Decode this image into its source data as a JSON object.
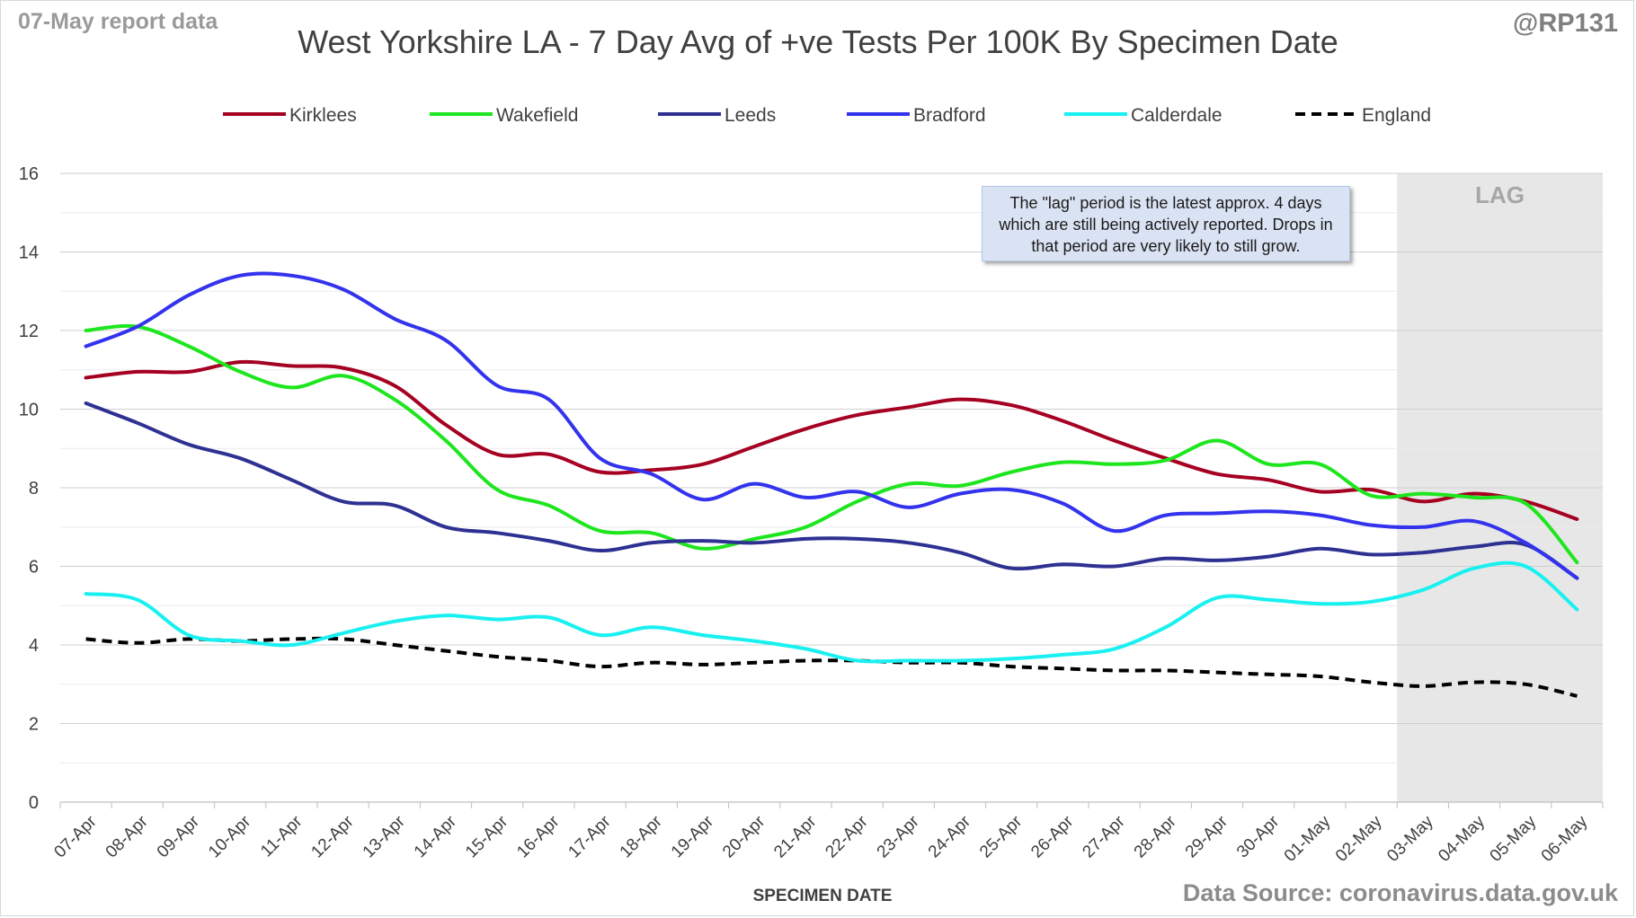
{
  "header": {
    "report_label": "07-May report data",
    "handle": "@RP131",
    "source": "Data Source: coronavirus.data.gov.uk"
  },
  "note": "The \"lag\" period is the latest approx. 4 days which are still being actively reported.  Drops in that period are very likely to still grow.",
  "lag_label": "LAG",
  "chart_data": {
    "type": "line",
    "title": "West Yorkshire LA - 7 Day Avg of +ve Tests Per 100K By Specimen Date",
    "xlabel": "SPECIMEN DATE",
    "ylabel": "",
    "ylim": [
      0,
      16
    ],
    "yticks": [
      0,
      2,
      4,
      6,
      8,
      10,
      12,
      14,
      16
    ],
    "grid": true,
    "legend_position": "top",
    "lag_start": "03-May",
    "lag_end": "06-May",
    "categories": [
      "07-Apr",
      "08-Apr",
      "09-Apr",
      "10-Apr",
      "11-Apr",
      "12-Apr",
      "13-Apr",
      "14-Apr",
      "15-Apr",
      "16-Apr",
      "17-Apr",
      "18-Apr",
      "19-Apr",
      "20-Apr",
      "21-Apr",
      "22-Apr",
      "23-Apr",
      "24-Apr",
      "25-Apr",
      "26-Apr",
      "27-Apr",
      "28-Apr",
      "29-Apr",
      "30-Apr",
      "01-May",
      "02-May",
      "03-May",
      "04-May",
      "05-May",
      "06-May"
    ],
    "series": [
      {
        "name": "Kirklees",
        "color": "#a50021",
        "dashed": false,
        "values": [
          10.8,
          10.95,
          10.95,
          11.2,
          11.1,
          11.05,
          10.6,
          9.6,
          8.85,
          8.85,
          8.4,
          8.45,
          8.6,
          9.05,
          9.5,
          9.85,
          10.05,
          10.25,
          10.1,
          9.7,
          9.2,
          8.75,
          8.35,
          8.2,
          7.9,
          7.95,
          7.65,
          7.85,
          7.65,
          7.2
        ]
      },
      {
        "name": "Wakefield",
        "color": "#1ee61e",
        "dashed": false,
        "values": [
          12.0,
          12.1,
          11.6,
          10.95,
          10.55,
          10.85,
          10.25,
          9.2,
          7.95,
          7.55,
          6.9,
          6.85,
          6.45,
          6.7,
          7.0,
          7.65,
          8.1,
          8.05,
          8.4,
          8.65,
          8.6,
          8.7,
          9.2,
          8.6,
          8.6,
          7.8,
          7.85,
          7.75,
          7.6,
          6.1
        ]
      },
      {
        "name": "Leeds",
        "color": "#2e3192",
        "dashed": false,
        "values": [
          10.15,
          9.65,
          9.1,
          8.75,
          8.2,
          7.65,
          7.55,
          7.0,
          6.85,
          6.65,
          6.4,
          6.6,
          6.65,
          6.6,
          6.7,
          6.7,
          6.6,
          6.35,
          5.95,
          6.05,
          6.0,
          6.2,
          6.15,
          6.25,
          6.45,
          6.3,
          6.35,
          6.5,
          6.55,
          5.7
        ]
      },
      {
        "name": "Bradford",
        "color": "#3333ee",
        "dashed": false,
        "values": [
          11.6,
          12.1,
          12.9,
          13.4,
          13.4,
          13.05,
          12.3,
          11.75,
          10.6,
          10.25,
          8.75,
          8.35,
          7.7,
          8.1,
          7.75,
          7.9,
          7.5,
          7.85,
          7.95,
          7.6,
          6.9,
          7.3,
          7.35,
          7.4,
          7.3,
          7.05,
          7.0,
          7.15,
          6.6,
          5.7
        ]
      },
      {
        "name": "Calderdale",
        "color": "#19f0f0",
        "dashed": false,
        "values": [
          5.3,
          5.15,
          4.25,
          4.1,
          4.0,
          4.3,
          4.6,
          4.75,
          4.65,
          4.7,
          4.25,
          4.45,
          4.25,
          4.1,
          3.9,
          3.6,
          3.6,
          3.6,
          3.65,
          3.75,
          3.9,
          4.45,
          5.2,
          5.15,
          5.05,
          5.1,
          5.4,
          5.95,
          6.0,
          4.9
        ]
      },
      {
        "name": "England",
        "color": "#000000",
        "dashed": true,
        "values": [
          4.15,
          4.05,
          4.15,
          4.1,
          4.15,
          4.15,
          4.0,
          3.85,
          3.7,
          3.6,
          3.45,
          3.55,
          3.5,
          3.55,
          3.6,
          3.6,
          3.55,
          3.55,
          3.45,
          3.4,
          3.35,
          3.35,
          3.3,
          3.25,
          3.2,
          3.05,
          2.95,
          3.05,
          3.0,
          2.7
        ]
      }
    ]
  }
}
